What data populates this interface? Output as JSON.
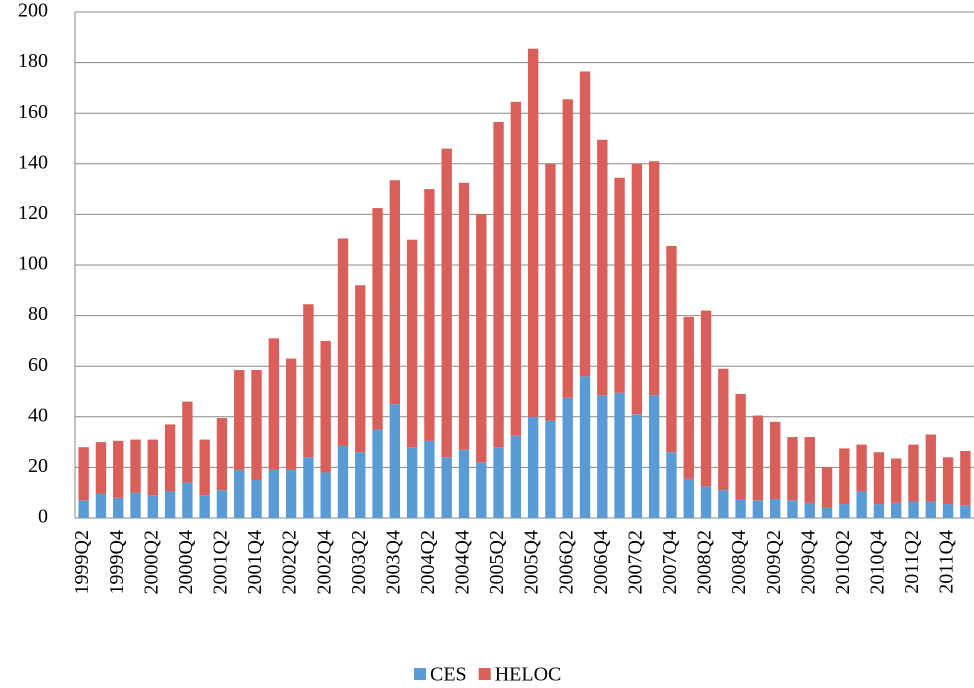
{
  "chart_data": {
    "type": "stacked-bar",
    "categories": [
      "1999Q2",
      null,
      "1999Q4",
      null,
      "2000Q2",
      null,
      "2000Q4",
      null,
      "2001Q2",
      null,
      "2001Q4",
      null,
      "2002Q2",
      null,
      "2002Q4",
      null,
      "2003Q2",
      null,
      "2003Q4",
      null,
      "2004Q2",
      null,
      "2004Q4",
      null,
      "2005Q2",
      null,
      "2005Q4",
      null,
      "2006Q2",
      null,
      "2006Q4",
      null,
      "2007Q2",
      null,
      "2007Q4",
      null,
      "2008Q2",
      null,
      "2008Q4",
      null,
      "2009Q2",
      null,
      "2009Q4",
      null,
      "2010Q2",
      null,
      "2010Q4",
      null,
      "2011Q2",
      null,
      "2011Q4",
      null
    ],
    "series": [
      {
        "name": "CES",
        "color": "#5b9bd5",
        "values": [
          7,
          9.5,
          8,
          10,
          9,
          10.5,
          14,
          9,
          11,
          19,
          15,
          19,
          19,
          24,
          18,
          28.5,
          26,
          35,
          45,
          28,
          30.5,
          24,
          27,
          22,
          28,
          32.5,
          40,
          38.5,
          47.5,
          56,
          48.5,
          49.5,
          41,
          48.5,
          26,
          15.5,
          12.5,
          11,
          7.5,
          7,
          7.5,
          7,
          6,
          4,
          5.5,
          10.5,
          5.5,
          6,
          6.5,
          6.5,
          5.5,
          5
        ]
      },
      {
        "name": "HELOC",
        "color": "#d9605a",
        "values": [
          21,
          20.5,
          22.5,
          21,
          22,
          26.5,
          32,
          22,
          28.5,
          39.5,
          43.5,
          52,
          44,
          60.5,
          52,
          82,
          66,
          87.5,
          88.5,
          82,
          99.5,
          122,
          105.5,
          98,
          128.5,
          132,
          145.5,
          101.5,
          118,
          120.5,
          101,
          85,
          99,
          92.5,
          81.5,
          64,
          69.5,
          48,
          41.5,
          33.5,
          30.5,
          25,
          26,
          16,
          22,
          18.5,
          20.5,
          17.5,
          22.5,
          26.5,
          18.5,
          21.5
        ]
      }
    ],
    "ylim": [
      0,
      200
    ],
    "yticks": [
      0,
      20,
      40,
      60,
      80,
      100,
      120,
      140,
      160,
      180,
      200
    ],
    "grid": true,
    "legend": "bottom"
  }
}
